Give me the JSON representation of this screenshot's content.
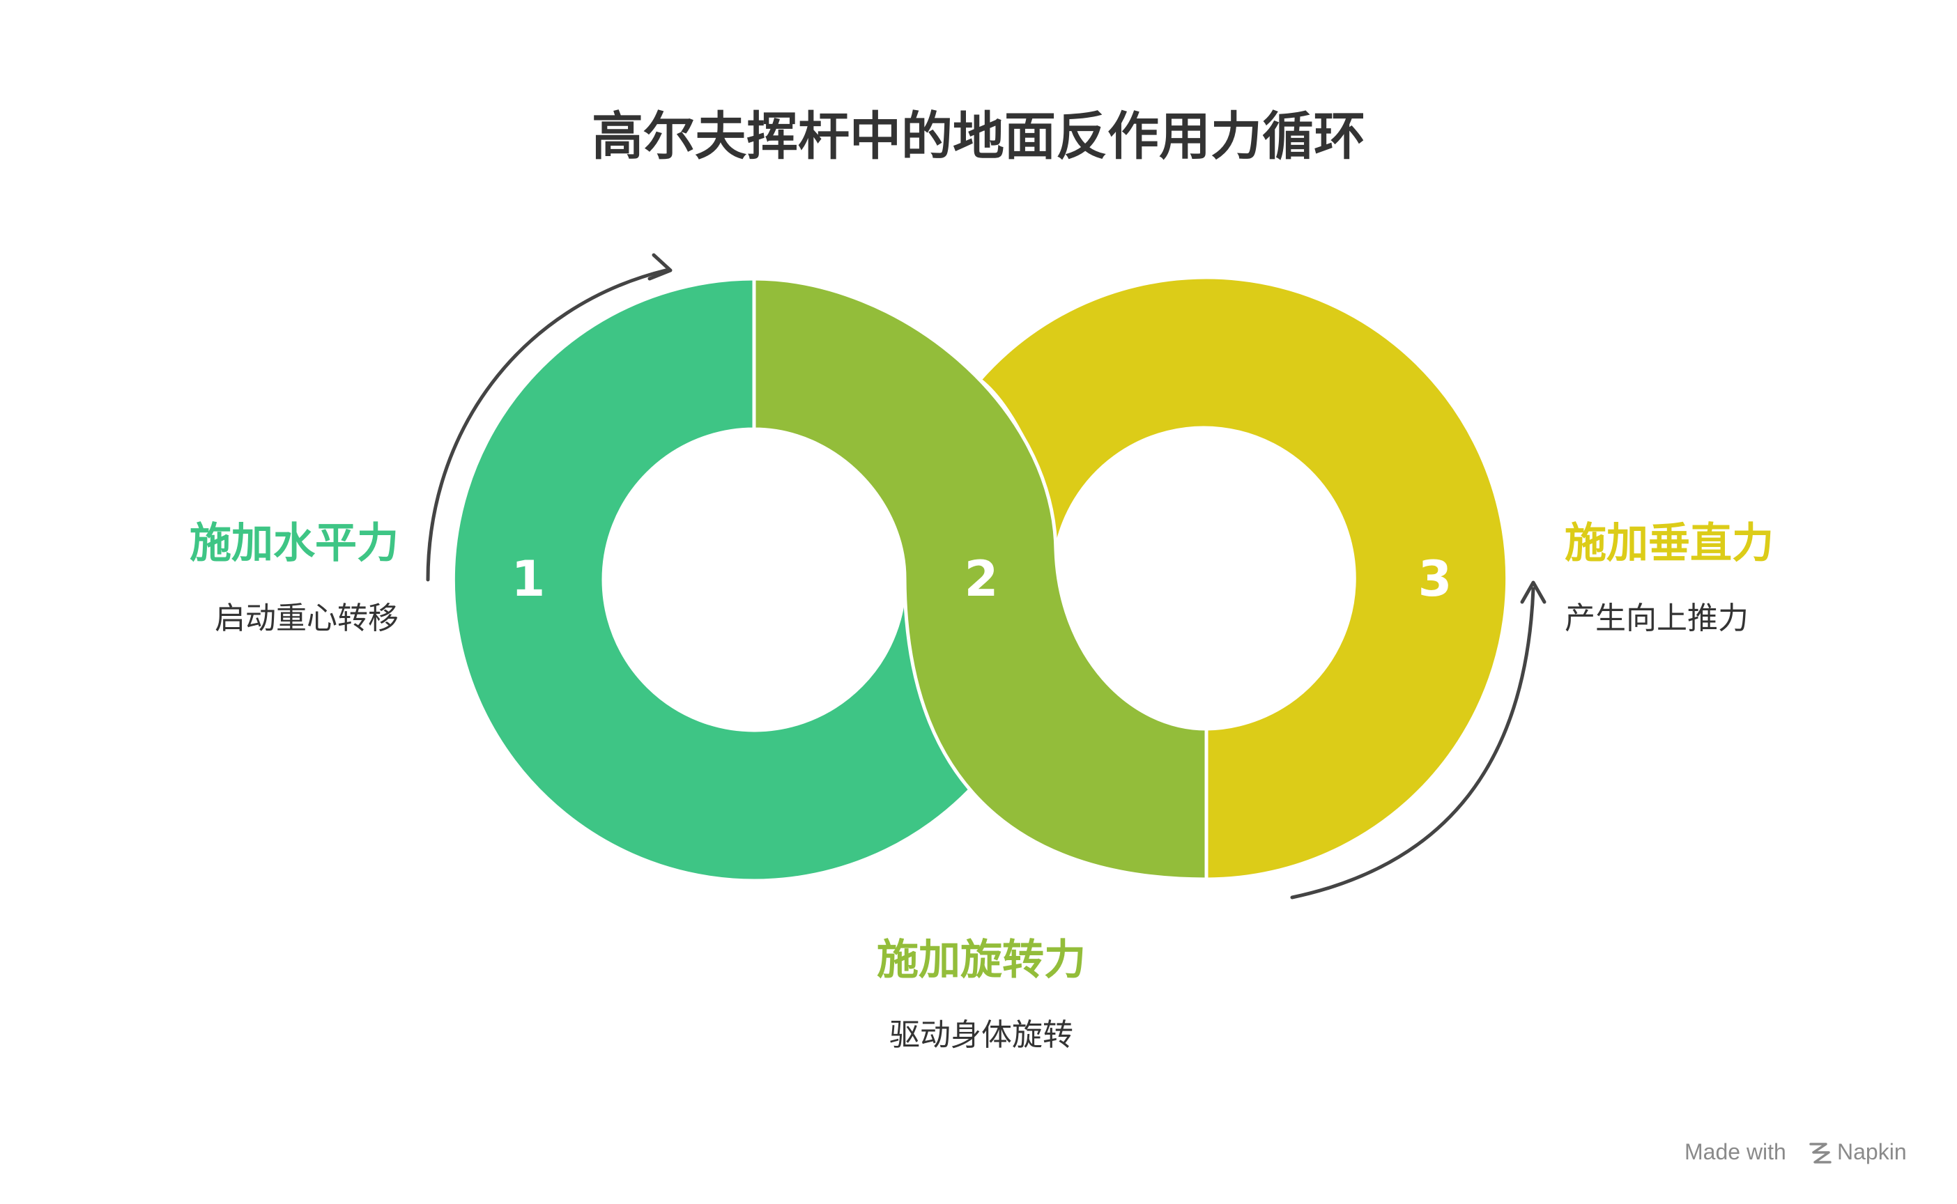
{
  "title": "高尔夫挥杆中的地面反作用力循环",
  "stages": [
    {
      "number": "1",
      "heading": "施加水平力",
      "description": "启动重心转移",
      "color": "#3ec585"
    },
    {
      "number": "2",
      "heading": "施加旋转力",
      "description": "驱动身体旋转",
      "color": "#93bd3a"
    },
    {
      "number": "3",
      "heading": "施加垂直力",
      "description": "产生向上推力",
      "color": "#dccc18"
    }
  ],
  "arrow_color": "#444444",
  "watermark": {
    "prefix": "Made with",
    "brand": "Napkin",
    "icon": "napkin-logo-icon"
  }
}
